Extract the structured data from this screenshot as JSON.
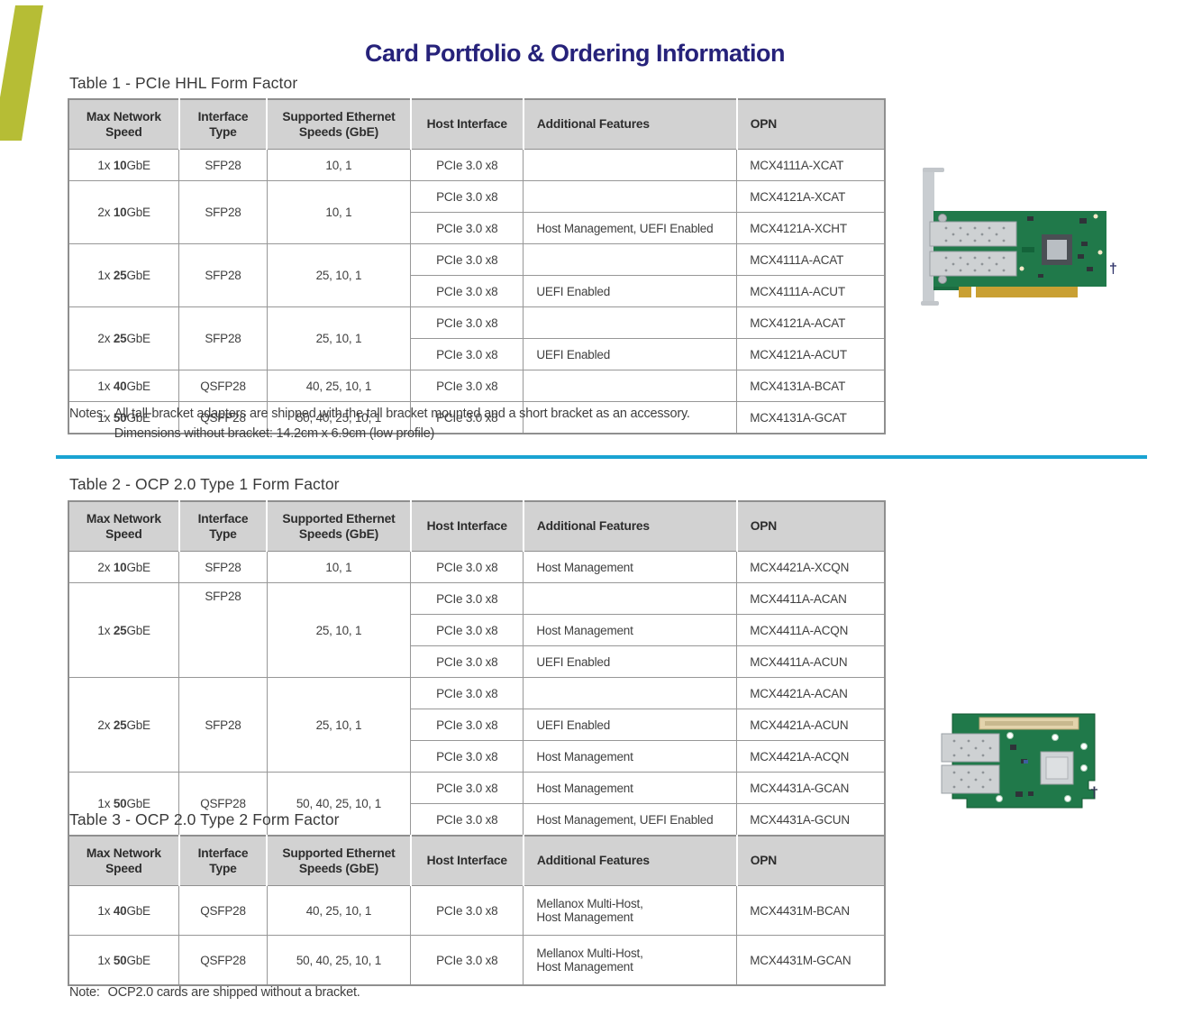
{
  "page_title": "Card Portfolio & Ordering Information",
  "colors": {
    "title_navy": "#26227a",
    "accent_lime": "#b6bd35",
    "divider_teal": "#19a3d2",
    "table_header_bg": "#d2d2d2",
    "table_border": "#8f8f8f",
    "body_text": "#3d3d3d"
  },
  "col_headers": [
    "Max Network Speed",
    "Interface Type",
    "Supported Ethernet Speeds (GbE)",
    "Host Interface",
    "Additional Features",
    "OPN"
  ],
  "tables": [
    {
      "caption": "Table 1 - PCIe HHL Form Factor",
      "groups": [
        {
          "speed": [
            "1x ",
            "10",
            "GbE"
          ],
          "interface": "SFP28",
          "speeds": "10, 1",
          "rows": [
            [
              "PCIe 3.0 x8",
              "",
              "MCX4111A-XCAT"
            ]
          ]
        },
        {
          "speed": [
            "2x ",
            "10",
            "GbE"
          ],
          "interface": "SFP28",
          "speeds": "10, 1",
          "rows": [
            [
              "PCIe 3.0 x8",
              "",
              "MCX4121A-XCAT"
            ],
            [
              "PCIe 3.0 x8",
              "Host Management, UEFI Enabled",
              "MCX4121A-XCHT"
            ]
          ]
        },
        {
          "speed": [
            "1x ",
            "25",
            "GbE"
          ],
          "interface": "SFP28",
          "speeds": "25, 10, 1",
          "rows": [
            [
              "PCIe 3.0 x8",
              "",
              "MCX4111A-ACAT"
            ],
            [
              "PCIe 3.0 x8",
              "UEFI Enabled",
              "MCX4111A-ACUT"
            ]
          ]
        },
        {
          "speed": [
            "2x ",
            "25",
            "GbE"
          ],
          "interface": "SFP28",
          "speeds": "25, 10, 1",
          "rows": [
            [
              "PCIe 3.0 x8",
              "",
              "MCX4121A-ACAT"
            ],
            [
              "PCIe 3.0 x8",
              "UEFI Enabled",
              "MCX4121A-ACUT"
            ]
          ]
        },
        {
          "speed": [
            "1x ",
            "40",
            "GbE"
          ],
          "interface": "QSFP28",
          "speeds": "40, 25, 10, 1",
          "rows": [
            [
              "PCIe 3.0 x8",
              "",
              "MCX4131A-BCAT"
            ]
          ]
        },
        {
          "speed": [
            "1x ",
            "50",
            "GbE"
          ],
          "interface": "QSFP28",
          "speeds": "50, 40, 25, 10, 1",
          "rows": [
            [
              "PCIe 3.0 x8",
              "",
              "MCX4131A-GCAT"
            ]
          ]
        }
      ],
      "notes": {
        "label": "Notes:",
        "lines": [
          "All tall-bracket adapters are shipped with the tall bracket mounted and a short bracket as an accessory.",
          "Dimensions without bracket: 14.2cm x 6.9cm (low profile)"
        ]
      }
    },
    {
      "caption": "Table 2 - OCP 2.0 Type 1 Form Factor",
      "groups": [
        {
          "speed": [
            "2x ",
            "10",
            "GbE"
          ],
          "interface": "SFP28",
          "speeds": "10, 1",
          "rows": [
            [
              "PCIe 3.0 x8",
              "Host Management",
              "MCX4421A-XCQN"
            ]
          ]
        },
        {
          "speed": [
            "1x ",
            "25",
            "GbE"
          ],
          "interface": "SFP28",
          "interface_top": true,
          "speeds": "25, 10, 1",
          "rows": [
            [
              "PCIe 3.0 x8",
              "",
              "MCX4411A-ACAN"
            ],
            [
              "PCIe 3.0 x8",
              "Host Management",
              "MCX4411A-ACQN"
            ],
            [
              "PCIe 3.0 x8",
              "UEFI Enabled",
              "MCX4411A-ACUN"
            ]
          ]
        },
        {
          "speed": [
            "2x ",
            "25",
            "GbE"
          ],
          "interface": "SFP28",
          "speeds": "25, 10, 1",
          "rows": [
            [
              "PCIe 3.0 x8",
              "",
              "MCX4421A-ACAN"
            ],
            [
              "PCIe 3.0 x8",
              "UEFI Enabled",
              "MCX4421A-ACUN"
            ],
            [
              "PCIe 3.0 x8",
              "Host Management",
              "MCX4421A-ACQN"
            ]
          ]
        },
        {
          "speed": [
            "1x ",
            "50",
            "GbE"
          ],
          "interface": "QSFP28",
          "speeds": "50, 40, 25, 10, 1",
          "rows": [
            [
              "PCIe 3.0 x8",
              "Host Management",
              "MCX4431A-GCAN"
            ],
            [
              "PCIe 3.0 x8",
              "Host Management, UEFI Enabled",
              "MCX4431A-GCUN"
            ]
          ]
        }
      ]
    },
    {
      "caption": "Table 3 - OCP 2.0 Type 2 Form Factor",
      "groups": [
        {
          "speed": [
            "1x ",
            "40",
            "GbE"
          ],
          "interface": "QSFP28",
          "speeds": "40, 25, 10, 1",
          "rows": [
            [
              "PCIe 3.0 x8",
              "Mellanox Multi-Host,\nHost Management",
              "MCX4431M-BCAN"
            ]
          ]
        },
        {
          "speed": [
            "1x ",
            "50",
            "GbE"
          ],
          "interface": "QSFP28",
          "speeds": "50, 40, 25, 10, 1",
          "rows": [
            [
              "PCIe 3.0 x8",
              "Mellanox Multi-Host,\nHost Management",
              "MCX4431M-GCAN"
            ]
          ]
        }
      ],
      "notes": {
        "label": "Note:",
        "lines": [
          "OCP2.0 cards are shipped without a bracket."
        ]
      }
    }
  ],
  "figures": {
    "dagger": "†"
  }
}
